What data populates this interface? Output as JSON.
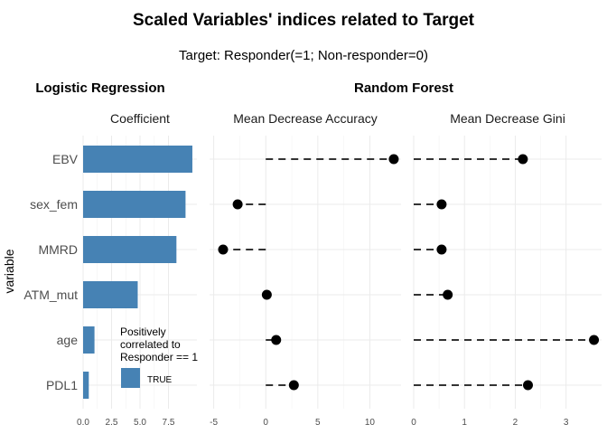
{
  "title": "Scaled Variables' indices related to Target",
  "subtitle": "Target: Responder(=1; Non-responder=0)",
  "sections": {
    "left": "Logistic Regression",
    "right": "Random Forest"
  },
  "y_axis_title": "variable",
  "legend": {
    "title_lines": [
      "Positively",
      "correlated to",
      "Responder == 1"
    ],
    "key_label": "TRUE",
    "color": "#4682B4"
  },
  "colors": {
    "bar": "#4682B4",
    "point": "#000000",
    "segment": "#333333"
  },
  "chart_data": [
    {
      "type": "bar",
      "orientation": "horizontal",
      "facet": "Coefficient",
      "categories": [
        "EBV",
        "sex_fem",
        "MMRD",
        "ATM_mut",
        "age",
        "PDL1"
      ],
      "values": [
        9.6,
        9.0,
        8.2,
        4.8,
        1.0,
        0.5
      ],
      "positively_correlated": [
        true,
        true,
        true,
        true,
        true,
        true
      ],
      "xlim": [
        0,
        10
      ],
      "xticks": [
        "0.0",
        "2.5",
        "5.0",
        "7.5"
      ],
      "xtick_values": [
        0,
        2.5,
        5,
        7.5
      ]
    },
    {
      "type": "lollipop",
      "facet": "Mean Decrease Accuracy",
      "categories": [
        "EBV",
        "sex_fem",
        "MMRD",
        "ATM_mut",
        "age",
        "PDL1"
      ],
      "values": [
        12.3,
        -2.7,
        -4.1,
        0.1,
        1.0,
        2.7
      ],
      "xlim": [
        -5.4,
        13.0
      ],
      "xticks": [
        "-5",
        "0",
        "5",
        "10"
      ],
      "xtick_values": [
        -5,
        0,
        5,
        10
      ]
    },
    {
      "type": "lollipop",
      "facet": "Mean Decrease Gini",
      "categories": [
        "EBV",
        "sex_fem",
        "MMRD",
        "ATM_mut",
        "age",
        "PDL1"
      ],
      "values": [
        2.15,
        0.55,
        0.55,
        0.67,
        3.55,
        2.25
      ],
      "xlim": [
        0,
        3.7
      ],
      "xticks": [
        "0",
        "1",
        "2",
        "3"
      ],
      "xtick_values": [
        0,
        1,
        2,
        3
      ]
    }
  ]
}
